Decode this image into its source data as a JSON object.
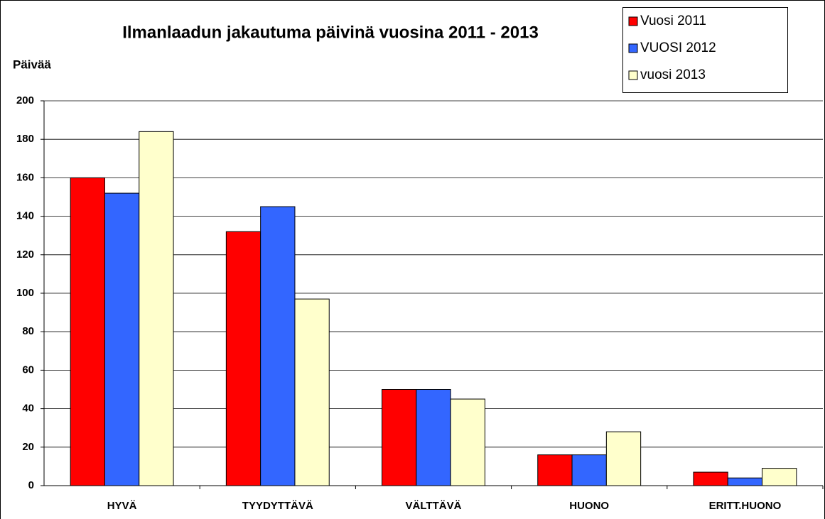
{
  "chart_data": {
    "type": "bar",
    "title": "Ilmanlaadun jakautuma päivinä vuosina 2011 -  2013",
    "y_label": "Päivää",
    "categories": [
      "HYVÄ",
      "TYYDYTTÄVÄ",
      "VÄLTTÄVÄ",
      "HUONO",
      "ERITT.HUONO"
    ],
    "series": [
      {
        "name": "Vuosi 2011",
        "color": "#ff0000",
        "values": [
          160,
          132,
          50,
          16,
          7
        ]
      },
      {
        "name": "VUOSI 2012",
        "color": "#3366ff",
        "values": [
          152,
          145,
          50,
          16,
          4
        ]
      },
      {
        "name": "vuosi 2013",
        "color": "#ffffcc",
        "values": [
          184,
          97,
          45,
          28,
          9
        ]
      }
    ],
    "ylim": [
      0,
      200
    ],
    "yticks": [
      0,
      20,
      40,
      60,
      80,
      100,
      120,
      140,
      160,
      180,
      200
    ],
    "grid": true,
    "legend": "top-right"
  }
}
